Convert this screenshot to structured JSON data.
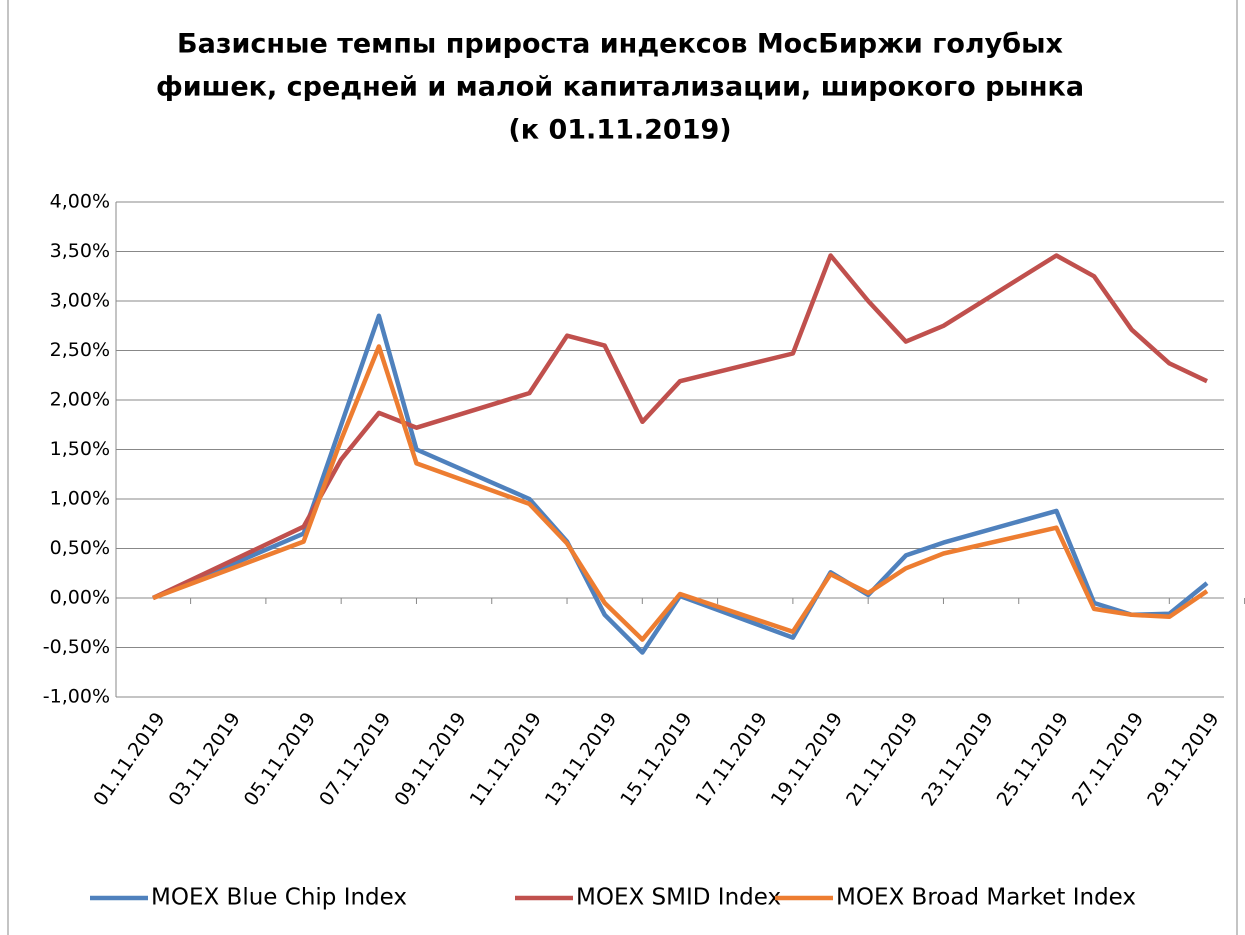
{
  "chart_data": {
    "type": "line",
    "title": [
      "Базисные темпы прироста индексов МосБиржи голубых",
      "фишек, средней и малой капитализации, широкого рынка",
      "(к 01.11.2019)"
    ],
    "x": [
      "01.11.2019",
      "05.11.2019",
      "06.11.2019",
      "07.11.2019",
      "08.11.2019",
      "11.11.2019",
      "12.11.2019",
      "13.11.2019",
      "14.11.2019",
      "15.11.2019",
      "18.11.2019",
      "19.11.2019",
      "20.11.2019",
      "21.11.2019",
      "22.11.2019",
      "25.11.2019",
      "26.11.2019",
      "27.11.2019",
      "28.11.2019",
      "29.11.2019"
    ],
    "xticks": [
      "01.11.2019",
      "03.11.2019",
      "05.11.2019",
      "07.11.2019",
      "09.11.2019",
      "11.11.2019",
      "13.11.2019",
      "15.11.2019",
      "17.11.2019",
      "19.11.2019",
      "21.11.2019",
      "23.11.2019",
      "25.11.2019",
      "27.11.2019",
      "29.11.2019"
    ],
    "series": [
      {
        "name": "MOEX Blue Chip Index",
        "color": "#4f81bd",
        "values": [
          0,
          0.65,
          1.75,
          2.85,
          1.5,
          1.0,
          0.57,
          -0.17,
          -0.55,
          0.02,
          -0.4,
          0.26,
          0.03,
          0.43,
          0.56,
          0.88,
          -0.05,
          -0.17,
          -0.16,
          0.15
        ]
      },
      {
        "name": "MOEX SMID Index",
        "color": "#c0504d",
        "values": [
          0,
          0.72,
          1.4,
          1.87,
          1.72,
          2.07,
          2.65,
          2.55,
          1.78,
          2.19,
          2.47,
          3.46,
          3.0,
          2.59,
          2.75,
          3.46,
          3.25,
          2.71,
          2.37,
          2.19
        ]
      },
      {
        "name": "MOEX Broad Market Index",
        "color": "#ed7d31",
        "values": [
          0,
          0.57,
          1.6,
          2.54,
          1.36,
          0.95,
          0.55,
          -0.05,
          -0.42,
          0.04,
          -0.34,
          0.24,
          0.05,
          0.3,
          0.45,
          0.71,
          -0.11,
          -0.17,
          -0.19,
          0.07
        ]
      }
    ],
    "ylim": [
      -1,
      4
    ],
    "yticks": [
      {
        "value": -1,
        "label": "-1,00%"
      },
      {
        "value": -0.5,
        "label": "-0,50%"
      },
      {
        "value": 0,
        "label": "0,00%"
      },
      {
        "value": 0.5,
        "label": "0,50%"
      },
      {
        "value": 1,
        "label": "1,00%"
      },
      {
        "value": 1.5,
        "label": "1,50%"
      },
      {
        "value": 2,
        "label": "2,00%"
      },
      {
        "value": 2.5,
        "label": "2,50%"
      },
      {
        "value": 3,
        "label": "3,00%"
      },
      {
        "value": 3.5,
        "label": "3,50%"
      },
      {
        "value": 4,
        "label": "4,00%"
      }
    ],
    "grid": true,
    "legend": "bottom"
  }
}
